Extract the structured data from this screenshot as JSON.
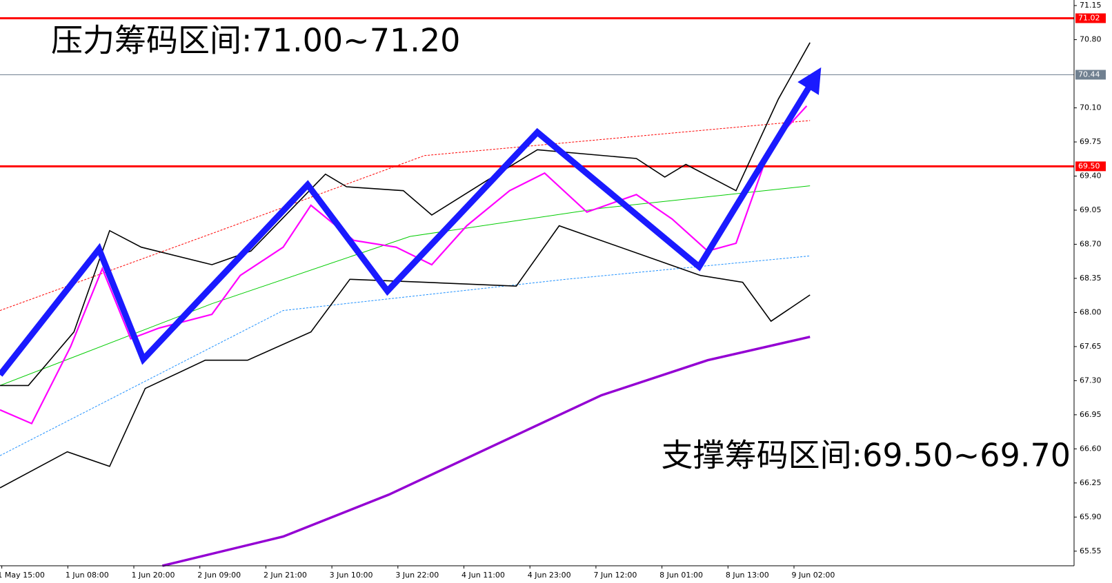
{
  "chart_data": {
    "type": "line",
    "annotations": [
      "压力筹码区间:71.00~71.20",
      "支撑筹码区间:69.50~69.70"
    ],
    "categories": [
      "1 May 15:00",
      "1 Jun 08:00",
      "1 Jun 20:00",
      "2 Jun 09:00",
      "2 Jun 21:00",
      "3 Jun 10:00",
      "3 Jun 22:00",
      "4 Jun 11:00",
      "4 Jun 23:00",
      "7 Jun 12:00",
      "8 Jun 01:00",
      "8 Jun 13:00",
      "9 Jun 02:00"
    ],
    "xlim": [
      -0.32,
      15.95
    ],
    "ylim": [
      65.4,
      71.2
    ],
    "yticks": [
      71.15,
      {
        "value": 70.8,
        "label": "70.80"
      },
      {
        "value": 70.1,
        "label": "70.10"
      },
      69.75,
      {
        "value": 69.4,
        "label": "69.40"
      },
      69.05,
      {
        "value": 68.7,
        "label": "68.70"
      },
      68.35,
      {
        "value": 68.0,
        "label": "68.00"
      },
      67.65,
      {
        "value": 67.3,
        "label": "67.30"
      },
      66.95,
      {
        "value": 66.6,
        "label": "66.60"
      },
      66.25,
      {
        "value": 65.9,
        "label": "65.90"
      },
      65.55
    ],
    "hlines": [
      {
        "value": 71.02,
        "color": "#ff0000"
      },
      {
        "value": 70.44,
        "color": "#708090"
      },
      {
        "value": 69.5,
        "label": "69.50",
        "color": "#ff0000"
      }
    ],
    "series": [
      {
        "color": "#ff0000",
        "x": [
          -0.32,
          2.89,
          6.11,
          11.95
        ],
        "values": [
          68.02,
          68.81,
          69.61,
          69.97
        ]
      },
      {
        "color": "#1e90ff",
        "x": [
          -0.32,
          3.97,
          8.25,
          11.95
        ],
        "values": [
          66.53,
          68.02,
          68.34,
          68.58
        ]
      },
      {
        "color": "#00cc00",
        "x": [
          -0.32,
          2.89,
          5.89,
          8.79,
          11.95
        ],
        "values": [
          67.25,
          68.09,
          68.78,
          69.07,
          69.3
        ]
      },
      {
        "color": "#000000",
        "x": [
          -0.32,
          0.11,
          0.8,
          1.34,
          1.82,
          2.89,
          3.48,
          4.61,
          4.93,
          5.79,
          6.22,
          7.07,
          7.82,
          9.32,
          9.75,
          10.07,
          10.83,
          11.47,
          11.95
        ],
        "values": [
          67.25,
          67.25,
          67.8,
          68.84,
          68.67,
          68.49,
          68.63,
          69.42,
          69.29,
          69.25,
          69.0,
          69.36,
          69.67,
          69.58,
          69.39,
          69.52,
          69.25,
          70.19,
          70.77
        ]
      },
      {
        "color": "#000000",
        "x": [
          -0.32,
          0.7,
          1.34,
          1.88,
          2.79,
          3.43,
          4.39,
          4.98,
          6.11,
          7.5,
          8.15,
          10.29,
          10.93,
          11.36,
          11.95
        ],
        "values": [
          66.2,
          66.57,
          66.42,
          67.22,
          67.51,
          67.51,
          67.8,
          68.34,
          68.31,
          68.27,
          68.89,
          68.38,
          68.31,
          67.91,
          68.18
        ]
      },
      {
        "color": "#ff00ff",
        "x": [
          -0.32,
          0.16,
          0.75,
          1.23,
          1.66,
          2.09,
          2.89,
          3.32,
          3.97,
          4.39,
          5.04,
          5.68,
          6.22,
          6.75,
          7.4,
          7.93,
          8.57,
          9.32,
          9.86,
          10.4,
          10.83,
          11.36,
          11.9
        ],
        "values": [
          67.0,
          66.86,
          67.65,
          68.45,
          67.73,
          67.84,
          67.98,
          68.38,
          68.67,
          69.1,
          68.74,
          68.67,
          68.49,
          68.89,
          69.25,
          69.43,
          69.03,
          69.21,
          68.96,
          68.63,
          68.71,
          69.72,
          70.12
        ]
      },
      {
        "color": "#9400d3",
        "x": [
          2.14,
          3.97,
          5.57,
          7.18,
          8.79,
          10.4,
          11.95
        ],
        "values": [
          65.4,
          65.7,
          66.13,
          66.64,
          67.15,
          67.51,
          67.75
        ]
      },
      {
        "color": "#1a1aff",
        "x": [
          -0.32,
          1.18,
          1.85,
          4.34,
          5.55,
          7.82,
          10.27,
          12.06
        ],
        "values": [
          67.36,
          68.65,
          67.52,
          69.31,
          68.22,
          69.85,
          68.47,
          70.45
        ]
      }
    ]
  }
}
